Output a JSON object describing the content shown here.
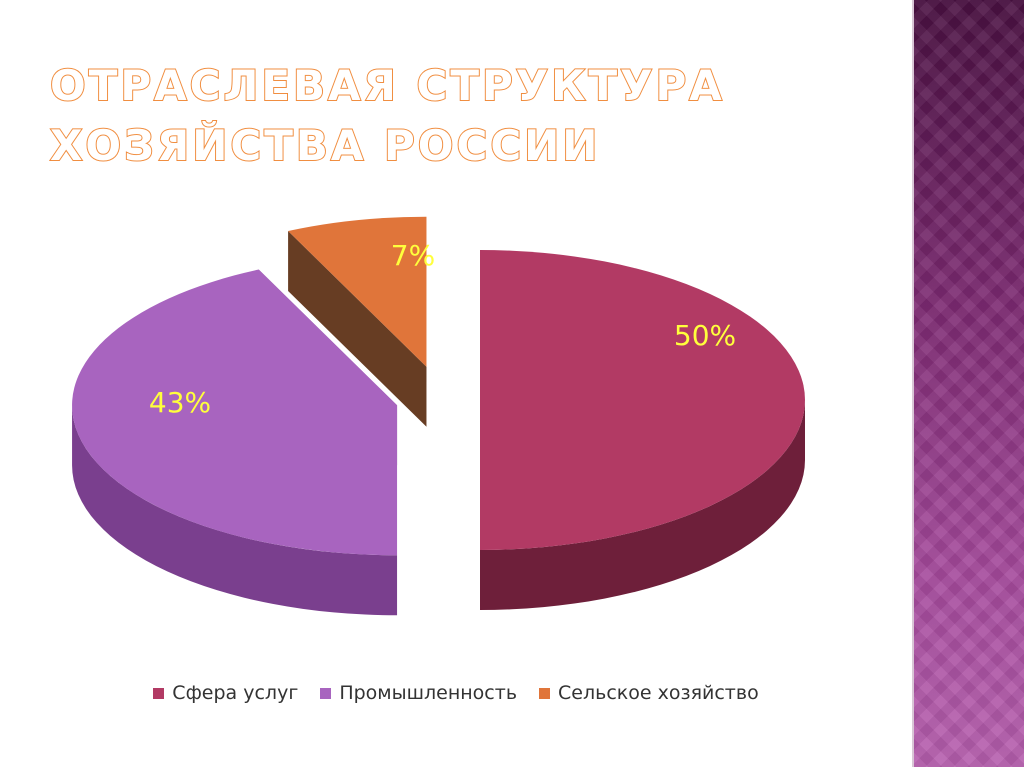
{
  "slide": {
    "title_lines": [
      "ОТРАСЛЕВАЯ СТРУКТУРА",
      "ХОЗЯЙСТВА РОССИИ"
    ]
  },
  "chart_data": {
    "type": "pie",
    "three_d": true,
    "exploded": true,
    "title": "",
    "legend_position": "bottom",
    "slices": [
      {
        "name": "Сфера услуг",
        "value": 50,
        "label": "50%",
        "color": "#b23a64",
        "side_color": "#6e1f3a"
      },
      {
        "name": "Промышленность",
        "value": 43,
        "label": "43%",
        "color": "#a864bf",
        "side_color": "#7a3f8e"
      },
      {
        "name": "Сельское хозяйство",
        "value": 7,
        "label": "7%",
        "color": "#e0753a",
        "side_color": "#5a2c10"
      }
    ]
  },
  "theme": {
    "title_outline": "#f08a3a",
    "label_color": "#ffff3c",
    "side_band_color": "#7d2a72"
  }
}
